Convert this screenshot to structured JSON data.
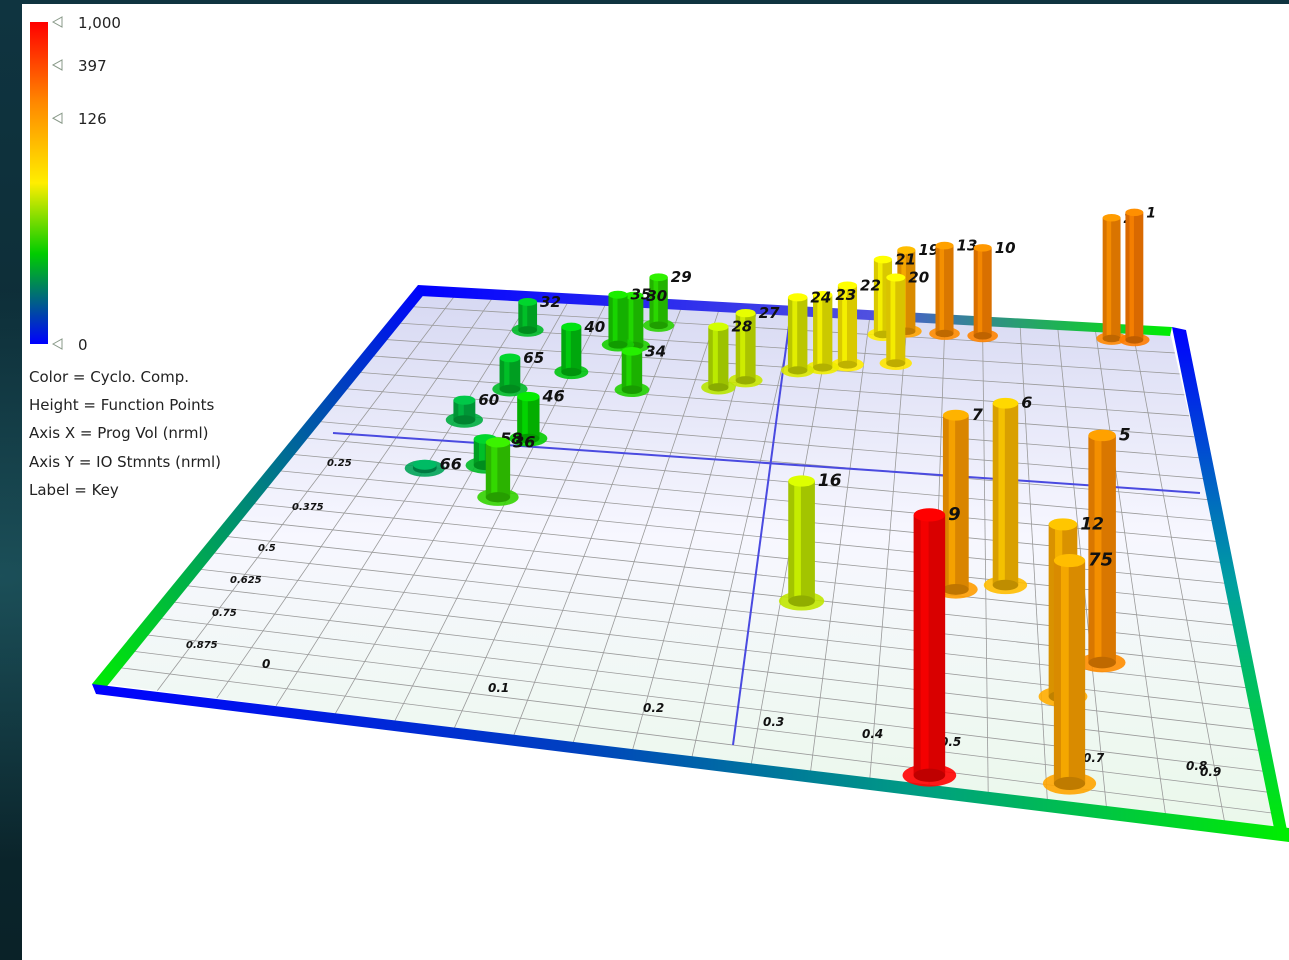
{
  "colorbar": {
    "ticks": [
      {
        "label": "1,000",
        "value": 1000
      },
      {
        "label": "397",
        "value": 397
      },
      {
        "label": "126",
        "value": 126
      },
      {
        "label": "0",
        "value": 0
      }
    ],
    "colors": [
      "#ff0000",
      "#ff8800",
      "#ffff00",
      "#00cc00",
      "#0000ff"
    ]
  },
  "legend": {
    "color_line": "Color = Cyclo. Comp.",
    "height_line": "Height = Function Points",
    "x_line": "Axis X = Prog Vol (nrml)",
    "y_line": "Axis Y = IO Stmnts (nrml)",
    "label_line": "Label = Key"
  },
  "chart_data": {
    "type": "3d-bar",
    "color_metric": "Cyclo. Comp.",
    "height_metric": "Function Points",
    "x_axis": {
      "label": "Prog Vol (nrml)",
      "ticks": [
        "0",
        "0.1",
        "0.2",
        "0.3",
        "0.4",
        "0.5",
        "0.7",
        "0.8",
        "0.9"
      ]
    },
    "y_axis": {
      "label": "IO Stmnts (nrml)",
      "ticks": [
        "0.25",
        "0.375",
        "0.5",
        "0.625",
        "0.75",
        "0.875"
      ]
    },
    "bars": [
      {
        "key": "66",
        "x": 0.15,
        "y": 0.42,
        "height": 2,
        "color_value": 90
      },
      {
        "key": "36",
        "x": 0.24,
        "y": 0.47,
        "height": 30,
        "color_value": 180
      },
      {
        "key": "16",
        "x": 0.57,
        "y": 0.63,
        "height": 60,
        "color_value": 330
      },
      {
        "key": "6",
        "x": 0.77,
        "y": 0.55,
        "height": 95,
        "color_value": 520
      },
      {
        "key": "7",
        "x": 0.72,
        "y": 0.57,
        "height": 90,
        "color_value": 600
      },
      {
        "key": "5",
        "x": 0.86,
        "y": 0.69,
        "height": 110,
        "color_value": 640
      },
      {
        "key": "12",
        "x": 0.82,
        "y": 0.77,
        "height": 80,
        "color_value": 560
      },
      {
        "key": "75",
        "x": 0.82,
        "y": 0.95,
        "height": 95,
        "color_value": 580
      },
      {
        "key": "9",
        "x": 0.7,
        "y": 0.97,
        "height": 110,
        "color_value": 1000
      },
      {
        "key": "34",
        "x": 0.33,
        "y": 0.2,
        "height": 25,
        "color_value": 160
      },
      {
        "key": "28",
        "x": 0.43,
        "y": 0.18,
        "height": 40,
        "color_value": 320
      },
      {
        "key": "27",
        "x": 0.46,
        "y": 0.16,
        "height": 45,
        "color_value": 340
      },
      {
        "key": "24",
        "x": 0.52,
        "y": 0.13,
        "height": 50,
        "color_value": 360
      },
      {
        "key": "23",
        "x": 0.55,
        "y": 0.12,
        "height": 50,
        "color_value": 380
      },
      {
        "key": "22",
        "x": 0.58,
        "y": 0.11,
        "height": 55,
        "color_value": 400
      },
      {
        "key": "20",
        "x": 0.64,
        "y": 0.1,
        "height": 60,
        "color_value": 420
      },
      {
        "key": "21",
        "x": 0.62,
        "y": 0.04,
        "height": 55,
        "color_value": 400
      },
      {
        "key": "19",
        "x": 0.65,
        "y": 0.03,
        "height": 60,
        "color_value": 580
      },
      {
        "key": "13",
        "x": 0.7,
        "y": 0.03,
        "height": 65,
        "color_value": 640
      },
      {
        "key": "10",
        "x": 0.75,
        "y": 0.03,
        "height": 65,
        "color_value": 660
      },
      {
        "key": "2",
        "x": 0.92,
        "y": 0.02,
        "height": 90,
        "color_value": 650
      },
      {
        "key": "1",
        "x": 0.95,
        "y": 0.02,
        "height": 95,
        "color_value": 680
      },
      {
        "key": "29",
        "x": 0.33,
        "y": 0.05,
        "height": 35,
        "color_value": 170
      },
      {
        "key": "30",
        "x": 0.31,
        "y": 0.1,
        "height": 35,
        "color_value": 160
      },
      {
        "key": "35",
        "x": 0.29,
        "y": 0.1,
        "height": 35,
        "color_value": 150
      },
      {
        "key": "32",
        "x": 0.17,
        "y": 0.08,
        "height": 20,
        "color_value": 110
      },
      {
        "key": "40",
        "x": 0.25,
        "y": 0.17,
        "height": 30,
        "color_value": 120
      },
      {
        "key": "46",
        "x": 0.24,
        "y": 0.33,
        "height": 25,
        "color_value": 130
      },
      {
        "key": "60",
        "x": 0.16,
        "y": 0.3,
        "height": 12,
        "color_value": 100
      },
      {
        "key": "65",
        "x": 0.19,
        "y": 0.22,
        "height": 20,
        "color_value": 110
      },
      {
        "key": "58",
        "x": 0.21,
        "y": 0.4,
        "height": 15,
        "color_value": 110
      }
    ]
  }
}
